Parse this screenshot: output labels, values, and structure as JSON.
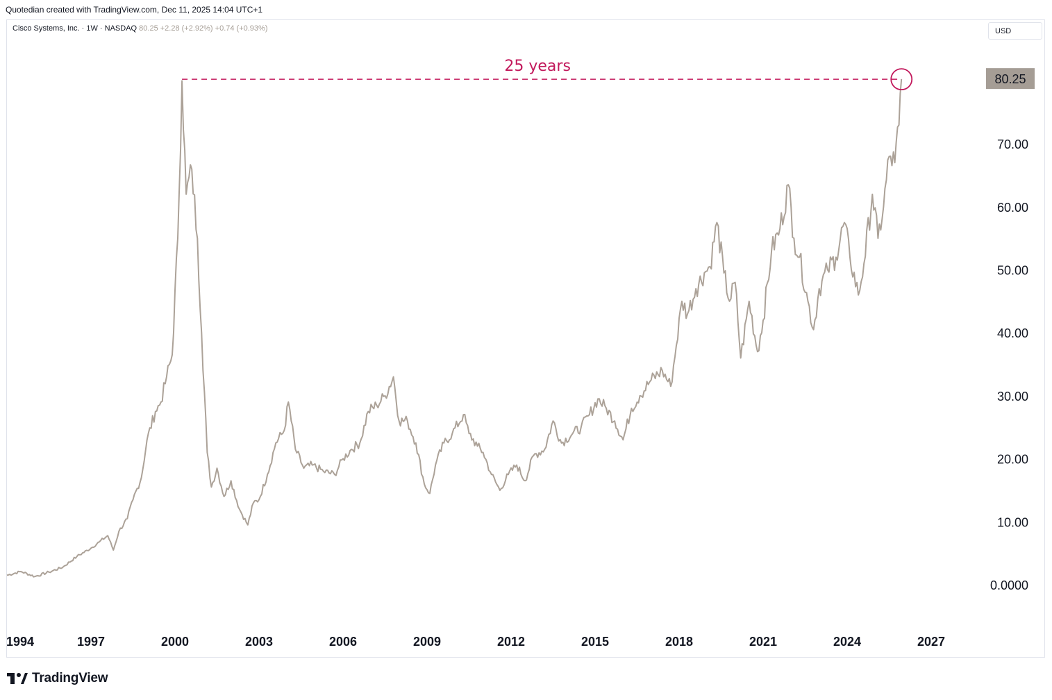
{
  "header": {
    "attribution": "Quotedian created with TradingView.com, Dec 11, 2025 14:04 UTC+1"
  },
  "legend": {
    "symbol": "Cisco Systems, Inc. · 1W · NASDAQ",
    "price": "80.25",
    "change": "+2.28 (+2.92%)",
    "change2": "+0.74 (+0.93%)"
  },
  "currency_button": "USD",
  "annotation": {
    "text": "25 years",
    "color": "#c2185b"
  },
  "last_price_label": "80.25",
  "footer": {
    "brand": "TradingView"
  },
  "colors": {
    "line": "#aca298",
    "label_bg": "#a59d95"
  },
  "chart_data": {
    "type": "line",
    "title": "",
    "xlabel": "",
    "ylabel": "",
    "x_ticks": [
      "1994",
      "1997",
      "2000",
      "2003",
      "2006",
      "2009",
      "2012",
      "2015",
      "2018",
      "2021",
      "2024",
      "2027"
    ],
    "y_ticks": [
      "0.0000",
      "10.00",
      "20.00",
      "30.00",
      "40.00",
      "50.00",
      "60.00",
      "70.00"
    ],
    "ylim": [
      0,
      80.25
    ],
    "xlim": [
      1994.0,
      2027.0
    ],
    "grid": false,
    "series": [
      {
        "values_x": [
          1994.0,
          1994.5,
          1995.0,
          1995.5,
          1996.0,
          1996.5,
          1997.0,
          1997.3,
          1997.6,
          1997.8,
          1998.0,
          1998.3,
          1998.5,
          1998.8,
          1999.0,
          1999.3,
          1999.5,
          1999.7,
          1999.9,
          2000.1,
          2000.25,
          2000.4,
          2000.6,
          2000.8,
          2000.95,
          2001.15,
          2001.3,
          2001.5,
          2001.75,
          2002.0,
          2002.3,
          2002.6,
          2002.8,
          2003.0,
          2003.3,
          2003.6,
          2003.9,
          2004.05,
          2004.3,
          2004.6,
          2004.9,
          2005.3,
          2005.7,
          2006.0,
          2006.3,
          2006.6,
          2006.9,
          2007.2,
          2007.5,
          2007.8,
          2008.0,
          2008.3,
          2008.6,
          2008.9,
          2009.1,
          2009.3,
          2009.6,
          2009.9,
          2010.3,
          2010.5,
          2010.8,
          2011.0,
          2011.3,
          2011.6,
          2011.9,
          2012.2,
          2012.5,
          2012.8,
          2013.2,
          2013.5,
          2013.8,
          2014.2,
          2014.5,
          2014.8,
          2015.1,
          2015.4,
          2015.7,
          2016.0,
          2016.3,
          2016.6,
          2017.0,
          2017.4,
          2017.7,
          2017.9,
          2018.1,
          2018.3,
          2018.6,
          2018.9,
          2019.1,
          2019.35,
          2019.6,
          2019.8,
          2020.0,
          2020.2,
          2020.5,
          2020.8,
          2021.0,
          2021.3,
          2021.6,
          2021.9,
          2022.1,
          2022.3,
          2022.6,
          2022.8,
          2023.0,
          2023.3,
          2023.6,
          2023.9,
          2024.1,
          2024.4,
          2024.6,
          2024.9,
          2025.1,
          2025.3,
          2025.5,
          2025.7,
          2025.85,
          2025.94
        ],
        "values_y": [
          1.5,
          2.1,
          1.3,
          2.0,
          2.8,
          4.5,
          5.8,
          6.8,
          7.8,
          5.5,
          8.5,
          10.5,
          13.5,
          17.0,
          23.0,
          27.5,
          29.0,
          33.0,
          36.5,
          55.0,
          80.0,
          62.0,
          66.0,
          55.0,
          40.0,
          21.0,
          15.5,
          18.5,
          14.0,
          16.5,
          12.0,
          9.5,
          13.0,
          13.5,
          17.5,
          22.5,
          24.5,
          29.0,
          21.5,
          18.5,
          19.0,
          18.0,
          17.5,
          20.0,
          21.5,
          22.5,
          27.5,
          28.5,
          30.0,
          33.0,
          26.0,
          26.0,
          22.5,
          16.0,
          14.5,
          19.0,
          22.5,
          24.0,
          27.0,
          24.0,
          22.0,
          21.0,
          17.5,
          15.0,
          17.5,
          19.0,
          16.5,
          20.5,
          21.5,
          26.0,
          22.5,
          24.0,
          25.0,
          27.0,
          29.5,
          28.0,
          26.0,
          23.0,
          28.0,
          30.0,
          32.5,
          34.0,
          31.5,
          38.0,
          45.0,
          43.0,
          47.0,
          49.5,
          50.5,
          57.5,
          49.5,
          45.0,
          48.0,
          36.0,
          45.0,
          37.0,
          42.0,
          53.0,
          56.5,
          63.5,
          55.0,
          52.0,
          45.0,
          40.5,
          47.0,
          50.0,
          52.0,
          57.5,
          52.0,
          46.0,
          51.0,
          62.0,
          55.0,
          60.0,
          68.0,
          67.0,
          73.0,
          80.25
        ]
      }
    ]
  }
}
